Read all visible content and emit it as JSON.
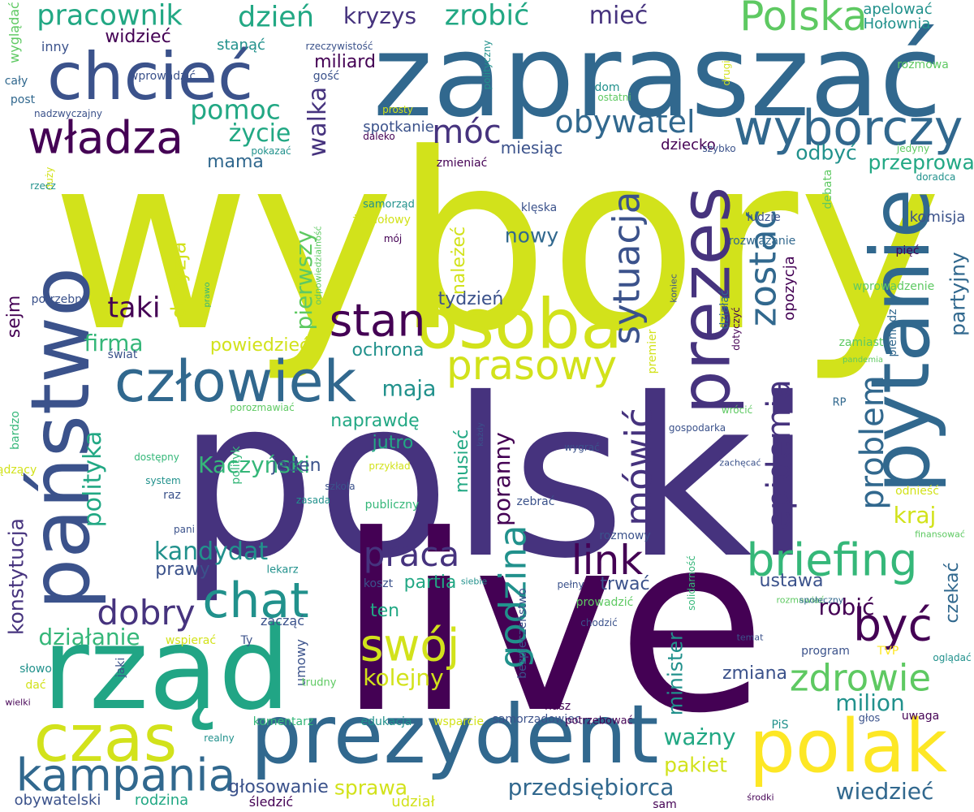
{
  "palette": {
    "yellow_green": "#d2e21b",
    "purple": "#46337e",
    "dark_purple": "#440154",
    "blue": "#31688e",
    "teal": "#21918c",
    "green": "#22a884",
    "light_green": "#5ec962",
    "yellow": "#fde725",
    "slate": "#3b528b"
  },
  "words": [
    {
      "text": "wybory",
      "color": "#d2e21b"
    },
    {
      "text": "polski",
      "color": "#46337e"
    },
    {
      "text": "live",
      "color": "#440154"
    },
    {
      "text": "zapraszać",
      "color": "#31688e"
    },
    {
      "text": "rząd",
      "color": "#21a585"
    },
    {
      "text": "państwo",
      "color": "#3b528b"
    },
    {
      "text": "prezydent",
      "color": "#31688e"
    },
    {
      "text": "pytanie",
      "color": "#31688e"
    },
    {
      "text": "polak",
      "color": "#fde725"
    },
    {
      "text": "osoba",
      "color": "#d2e21b"
    },
    {
      "text": "chcieć",
      "color": "#3b528b"
    },
    {
      "text": "człowiek",
      "color": "#31688e"
    },
    {
      "text": "prezes",
      "color": "#46337e"
    },
    {
      "text": "czas",
      "color": "#d2e21b"
    },
    {
      "text": "wyborczy",
      "color": "#31688e"
    },
    {
      "text": "władza",
      "color": "#440154"
    },
    {
      "text": "Polska",
      "color": "#5ec962"
    },
    {
      "text": "briefing",
      "color": "#35b779"
    },
    {
      "text": "chat",
      "color": "#21918c"
    },
    {
      "text": "kampania",
      "color": "#31688e"
    },
    {
      "text": "swój",
      "color": "#d2e21b"
    },
    {
      "text": "prasowy",
      "color": "#d2e21b"
    },
    {
      "text": "stan",
      "color": "#440154"
    },
    {
      "text": "być",
      "color": "#440154"
    },
    {
      "text": "link",
      "color": "#440154"
    },
    {
      "text": "zdrowie",
      "color": "#5ec962"
    },
    {
      "text": "mówić",
      "color": "#46337e"
    },
    {
      "text": "godzina",
      "color": "#21918c"
    },
    {
      "text": "sytuacja",
      "color": "#3b528b"
    },
    {
      "text": "zostać",
      "color": "#31688e"
    },
    {
      "text": "problem",
      "color": "#31688e"
    },
    {
      "text": "epidemia",
      "color": "#46337e"
    },
    {
      "text": "praca",
      "color": "#46337e"
    },
    {
      "text": "dobry",
      "color": "#46337e"
    },
    {
      "text": "móc",
      "color": "#46337e"
    },
    {
      "text": "obywatel",
      "color": "#31688e"
    },
    {
      "text": "pracownik",
      "color": "#22a884"
    },
    {
      "text": "dzień",
      "color": "#22a884"
    },
    {
      "text": "zrobić",
      "color": "#22a884"
    },
    {
      "text": "mieć",
      "color": "#46337e"
    },
    {
      "text": "kryzys",
      "color": "#46337e"
    },
    {
      "text": "pomoc",
      "color": "#22a884"
    },
    {
      "text": "życie",
      "color": "#22a884"
    },
    {
      "text": "walka",
      "color": "#46337e"
    },
    {
      "text": "taki",
      "color": "#440154"
    },
    {
      "text": "firma",
      "color": "#35b779"
    },
    {
      "text": "polityka",
      "color": "#22a884"
    },
    {
      "text": "kandydat",
      "color": "#21918c"
    },
    {
      "text": "przedsiębiorca",
      "color": "#31688e"
    },
    {
      "text": "wiedzieć",
      "color": "#31688e"
    },
    {
      "text": "sprawa",
      "color": "#d2e21b"
    },
    {
      "text": "kolejny",
      "color": "#d2e21b"
    },
    {
      "text": "pierwszy",
      "color": "#5ec962"
    },
    {
      "text": "decyzja",
      "color": "#d2e21b"
    },
    {
      "text": "konstytucja",
      "color": "#46337e"
    },
    {
      "text": "działanie",
      "color": "#35b779"
    },
    {
      "text": "milion",
      "color": "#21918c"
    },
    {
      "text": "ważny",
      "color": "#22a884"
    },
    {
      "text": "minister",
      "color": "#21918c"
    },
    {
      "text": "pakiet",
      "color": "#d2e21b"
    },
    {
      "text": "kraj",
      "color": "#d2e21b"
    },
    {
      "text": "robić",
      "color": "#440154"
    },
    {
      "text": "ustawa",
      "color": "#3b528b"
    },
    {
      "text": "Kaczyński",
      "color": "#35b779"
    },
    {
      "text": "poranny",
      "color": "#440154"
    },
    {
      "text": "maja",
      "color": "#21918c"
    },
    {
      "text": "nowy",
      "color": "#31688e"
    },
    {
      "text": "odbyć",
      "color": "#21918c"
    },
    {
      "text": "przeprowadzić",
      "color": "#22a884"
    },
    {
      "text": "partyjny",
      "color": "#31688e"
    },
    {
      "text": "czekać",
      "color": "#31688e"
    },
    {
      "text": "zmiana",
      "color": "#3b528b"
    },
    {
      "text": "trwać",
      "color": "#3b528b"
    },
    {
      "text": "jeden",
      "color": "#3b528b"
    },
    {
      "text": "jutro",
      "color": "#22a884"
    },
    {
      "text": "ochrona",
      "color": "#21918c"
    },
    {
      "text": "tydzień",
      "color": "#3b528b"
    },
    {
      "text": "należeć",
      "color": "#d2e21b"
    },
    {
      "text": "naprawdę",
      "color": "#22a884"
    },
    {
      "text": "musieć",
      "color": "#22a884"
    },
    {
      "text": "ten",
      "color": "#22a884"
    },
    {
      "text": "partia",
      "color": "#22a884"
    },
    {
      "text": "prawy",
      "color": "#3b528b"
    },
    {
      "text": "powiedzieć",
      "color": "#d2e21b"
    },
    {
      "text": "sejm",
      "color": "#440154"
    },
    {
      "text": "mama",
      "color": "#31688e"
    },
    {
      "text": "miliard",
      "color": "#440154"
    },
    {
      "text": "widzieć",
      "color": "#440154"
    },
    {
      "text": "miesiąc",
      "color": "#3b528b"
    },
    {
      "text": "spotkanie",
      "color": "#3b528b"
    },
    {
      "text": "dziecko",
      "color": "#440154"
    },
    {
      "text": "opozycja",
      "color": "#440154"
    },
    {
      "text": "komisja",
      "color": "#3b528b"
    },
    {
      "text": "Hołownia",
      "color": "#21918c"
    },
    {
      "text": "apelować",
      "color": "#21918c"
    },
    {
      "text": "stanąć",
      "color": "#21918c"
    },
    {
      "text": "wyglądać",
      "color": "#5ec962"
    },
    {
      "text": "inny",
      "color": "#3b528b"
    },
    {
      "text": "cały",
      "color": "#31688e"
    },
    {
      "text": "post",
      "color": "#31688e"
    },
    {
      "text": "wprowadzić",
      "color": "#3b528b"
    },
    {
      "text": "gość",
      "color": "#3b528b"
    },
    {
      "text": "dom",
      "color": "#21918c"
    },
    {
      "text": "rozmowa",
      "color": "#5ec962"
    },
    {
      "text": "rzeczywistość",
      "color": "#3b528b"
    },
    {
      "text": "polityczny",
      "color": "#21918c"
    },
    {
      "text": "drugi",
      "color": "#d2e21b"
    },
    {
      "text": "ostatni",
      "color": "#5ec962"
    },
    {
      "text": "nadzwyczajny",
      "color": "#3b528b"
    },
    {
      "text": "prosty",
      "color": "#d2e21b"
    },
    {
      "text": "daleko",
      "color": "#440154"
    },
    {
      "text": "pokazać",
      "color": "#21918c"
    },
    {
      "text": "szybko",
      "color": "#3b528b"
    },
    {
      "text": "jedyny",
      "color": "#5ec962"
    },
    {
      "text": "duży",
      "color": "#d2e21b"
    },
    {
      "text": "doradca",
      "color": "#21918c"
    },
    {
      "text": "zmieniać",
      "color": "#440154"
    },
    {
      "text": "rzecz",
      "color": "#21918c"
    },
    {
      "text": "samorząd",
      "color": "#21918c"
    },
    {
      "text": "klęska",
      "color": "#3b528b"
    },
    {
      "text": "żywiołowy",
      "color": "#d2e21b"
    },
    {
      "text": "mój",
      "color": "#440154"
    },
    {
      "text": "ludzie",
      "color": "#3b528b"
    },
    {
      "text": "debata",
      "color": "#5ec962"
    },
    {
      "text": "rozwiązanie",
      "color": "#31688e"
    },
    {
      "text": "odpowiedzialność",
      "color": "#5ec962"
    },
    {
      "text": "koniec",
      "color": "#3b528b"
    },
    {
      "text": "pięć",
      "color": "#440154"
    },
    {
      "text": "wprowadzenie",
      "color": "#5ec962"
    },
    {
      "text": "działać",
      "color": "#31688e"
    },
    {
      "text": "dotyczyć",
      "color": "#440154"
    },
    {
      "text": "potrzebny",
      "color": "#3b528b"
    },
    {
      "text": "prawo",
      "color": "#35b779"
    },
    {
      "text": "świat",
      "color": "#3b528b"
    },
    {
      "text": "zamiast",
      "color": "#5ec962"
    },
    {
      "text": "pandemia",
      "color": "#5ec962"
    },
    {
      "text": "pieniądz",
      "color": "#31688e"
    },
    {
      "text": "premier",
      "color": "#d2e21b"
    },
    {
      "text": "RP",
      "color": "#31688e"
    },
    {
      "text": "wrócić",
      "color": "#5ec962"
    },
    {
      "text": "porozmawiać",
      "color": "#5ec962"
    },
    {
      "text": "każdy",
      "color": "#3b528b"
    },
    {
      "text": "gospodarka",
      "color": "#3b528b"
    },
    {
      "text": "polityk",
      "color": "#35b779"
    },
    {
      "text": "dostępny",
      "color": "#35b779"
    },
    {
      "text": "wygrać",
      "color": "#3b528b"
    },
    {
      "text": "zachęcać",
      "color": "#3b528b"
    },
    {
      "text": "odnieść",
      "color": "#d2e21b"
    },
    {
      "text": "przykład",
      "color": "#d2e21b"
    },
    {
      "text": "bardzo",
      "color": "#35b779"
    },
    {
      "text": "system",
      "color": "#21918c"
    },
    {
      "text": "raz",
      "color": "#3b528b"
    },
    {
      "text": "rządzący",
      "color": "#d2e21b"
    },
    {
      "text": "szkoła",
      "color": "#3b528b"
    },
    {
      "text": "zasada",
      "color": "#21918c"
    },
    {
      "text": "publiczny",
      "color": "#35b779"
    },
    {
      "text": "zebrać",
      "color": "#3b528b"
    },
    {
      "text": "pani",
      "color": "#3b528b"
    },
    {
      "text": "rozmowy",
      "color": "#3b528b"
    },
    {
      "text": "finansować",
      "color": "#5ec962"
    },
    {
      "text": "solidarność",
      "color": "#35b779"
    },
    {
      "text": "lekarz",
      "color": "#21918c"
    },
    {
      "text": "koszt",
      "color": "#3b528b"
    },
    {
      "text": "siebie",
      "color": "#21918c"
    },
    {
      "text": "pełny",
      "color": "#3b528b"
    },
    {
      "text": "prowadzić",
      "color": "#5ec962"
    },
    {
      "text": "rozmawiać",
      "color": "#5ec962"
    },
    {
      "text": "społeczny",
      "color": "#31688e"
    },
    {
      "text": "bezpieczeństwo",
      "color": "#3b528b"
    },
    {
      "text": "zacząć",
      "color": "#3b528b"
    },
    {
      "text": "chodzić",
      "color": "#3b528b"
    },
    {
      "text": "Ty",
      "color": "#3b528b"
    },
    {
      "text": "wspierać",
      "color": "#d2e21b"
    },
    {
      "text": "temat",
      "color": "#3b528b"
    },
    {
      "text": "program",
      "color": "#3b528b"
    },
    {
      "text": "TVP",
      "color": "#fde725"
    },
    {
      "text": "oglądać",
      "color": "#21918c"
    },
    {
      "text": "słowo",
      "color": "#21918c"
    },
    {
      "text": "dać",
      "color": "#d2e21b"
    },
    {
      "text": "jaki",
      "color": "#3b528b"
    },
    {
      "text": "umowy",
      "color": "#3b528b"
    },
    {
      "text": "trudny",
      "color": "#5ec962"
    },
    {
      "text": "wielki",
      "color": "#440154"
    },
    {
      "text": "nasz",
      "color": "#440154"
    },
    {
      "text": "samorządowiec",
      "color": "#3b528b"
    },
    {
      "text": "komentarz",
      "color": "#35b779"
    },
    {
      "text": "edukacja",
      "color": "#21918c"
    },
    {
      "text": "wsparcie",
      "color": "#d2e21b"
    },
    {
      "text": "potrzebować",
      "color": "#440154"
    },
    {
      "text": "PiS",
      "color": "#21918c"
    },
    {
      "text": "głos",
      "color": "#3b528b"
    },
    {
      "text": "uwaga",
      "color": "#440154"
    },
    {
      "text": "realny",
      "color": "#21918c"
    },
    {
      "text": "głosowanie",
      "color": "#3b528b"
    },
    {
      "text": "obywatelski",
      "color": "#3b528b"
    },
    {
      "text": "rodzina",
      "color": "#22a884"
    },
    {
      "text": "śledzić",
      "color": "#440154"
    },
    {
      "text": "udział",
      "color": "#d2e21b"
    },
    {
      "text": "środki",
      "color": "#440154"
    },
    {
      "text": "sam",
      "color": "#440154"
    }
  ]
}
